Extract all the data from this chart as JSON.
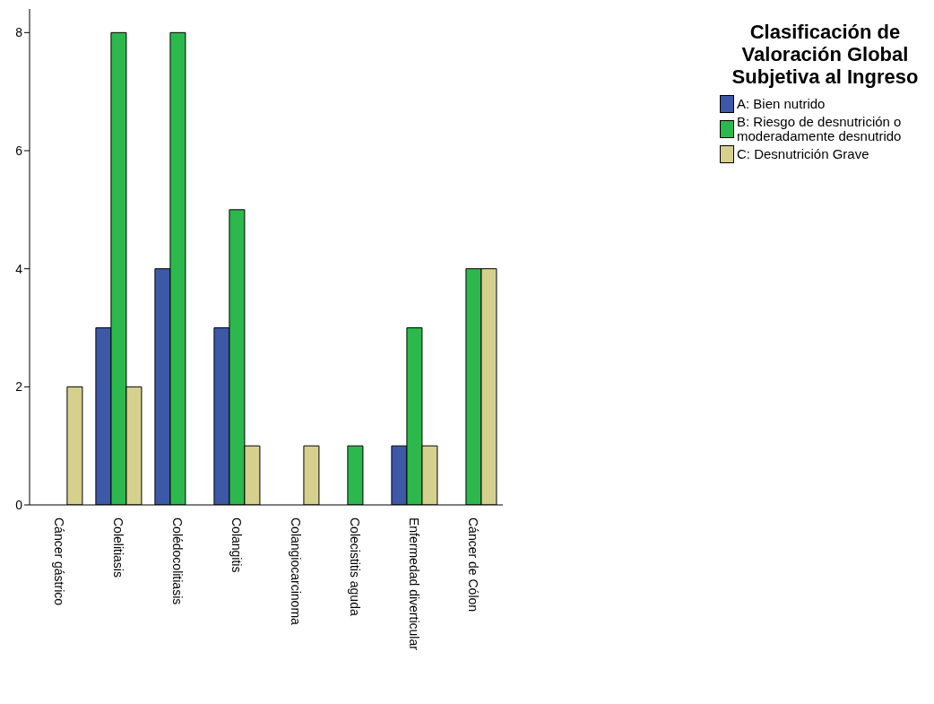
{
  "chart_data": {
    "type": "bar",
    "legend_title": "Clasificación de Valoración Global Subjetiva al Ingreso",
    "categories": [
      "Cáncer gástrico",
      "Colelitiasis",
      "Colédocolitiasis",
      "Colangitis",
      "Colangiocarcinoma",
      "Colecistitis aguda",
      "Enfermedad diverticular",
      "Cáncer de Cólon"
    ],
    "series": [
      {
        "name": "A: Bien nutrido",
        "color": "#3e58a8",
        "values": [
          0,
          3,
          4,
          3,
          0,
          0,
          1,
          0
        ]
      },
      {
        "name": "B: Riesgo de desnutrición o moderadamente desnutrido",
        "color": "#2db84d",
        "values": [
          0,
          8,
          8,
          5,
          0,
          1,
          3,
          4
        ]
      },
      {
        "name": "C: Desnutrición Grave",
        "color": "#d6d08f",
        "values": [
          2,
          2,
          0,
          1,
          1,
          0,
          1,
          4
        ]
      }
    ],
    "ylim": [
      0,
      8.4
    ],
    "yticks": [
      0,
      2,
      4,
      6,
      8
    ],
    "grid": false,
    "legend": "right"
  }
}
